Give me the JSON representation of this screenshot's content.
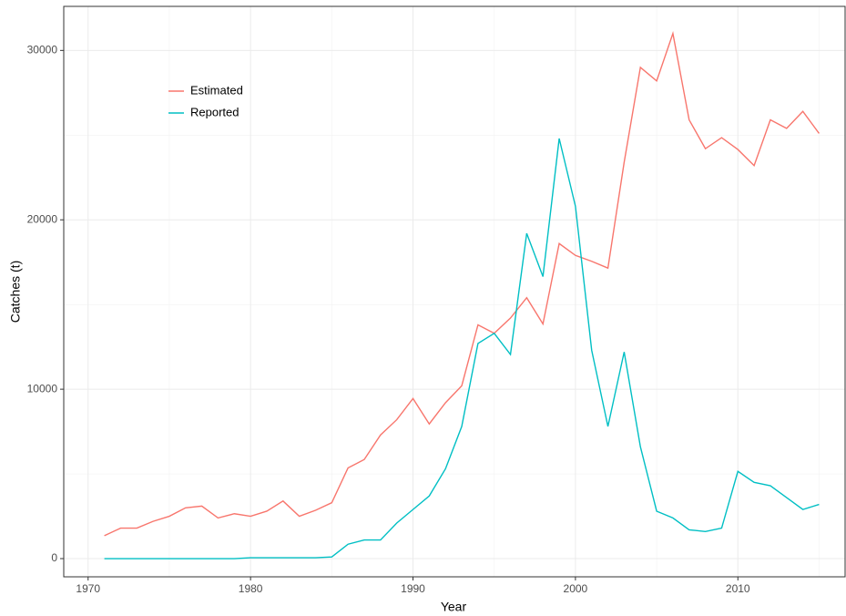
{
  "chart_data": {
    "type": "line",
    "x_label": "Year",
    "y_label": "Catches (t)",
    "x": [
      1971,
      1972,
      1973,
      1974,
      1975,
      1976,
      1977,
      1978,
      1979,
      1980,
      1981,
      1982,
      1983,
      1984,
      1985,
      1986,
      1987,
      1988,
      1989,
      1990,
      1991,
      1992,
      1993,
      1994,
      1995,
      1996,
      1997,
      1998,
      1999,
      2000,
      2001,
      2002,
      2003,
      2004,
      2005,
      2006,
      2007,
      2008,
      2009,
      2010,
      2011,
      2012,
      2013,
      2014,
      2015
    ],
    "series": [
      {
        "name": "Estimated",
        "color": "#F8766D",
        "values": [
          1350,
          1800,
          1800,
          2200,
          2500,
          3000,
          3100,
          2400,
          2650,
          2500,
          2800,
          3400,
          2500,
          2850,
          3300,
          5350,
          5850,
          7300,
          8200,
          9450,
          7950,
          9200,
          10200,
          13800,
          13300,
          14200,
          15400,
          13850,
          18600,
          17900,
          17550,
          17150,
          23400,
          29000,
          28200,
          31000,
          25900,
          24200,
          24850,
          24150,
          23200,
          25900,
          25400,
          26400,
          25100
        ]
      },
      {
        "name": "Reported",
        "color": "#00BFC4",
        "values": [
          0,
          0,
          0,
          0,
          0,
          0,
          0,
          0,
          0,
          50,
          50,
          50,
          50,
          50,
          100,
          850,
          1100,
          1100,
          2100,
          2900,
          3700,
          5300,
          7800,
          12700,
          13300,
          12050,
          19200,
          16650,
          24800,
          20800,
          12300,
          7800,
          12200,
          6600,
          2800,
          2400,
          1700,
          1600,
          1800,
          5150,
          4500,
          4300,
          3600,
          2900,
          3200
        ]
      }
    ],
    "xlim": [
      1968.5,
      2016.6
    ],
    "ylim": [
      -1075,
      32600
    ],
    "xticks": [
      1970,
      1980,
      1990,
      2000,
      2010
    ],
    "yticks": [
      0,
      10000,
      20000,
      30000
    ],
    "grid": true,
    "legend_position": "top-left"
  }
}
